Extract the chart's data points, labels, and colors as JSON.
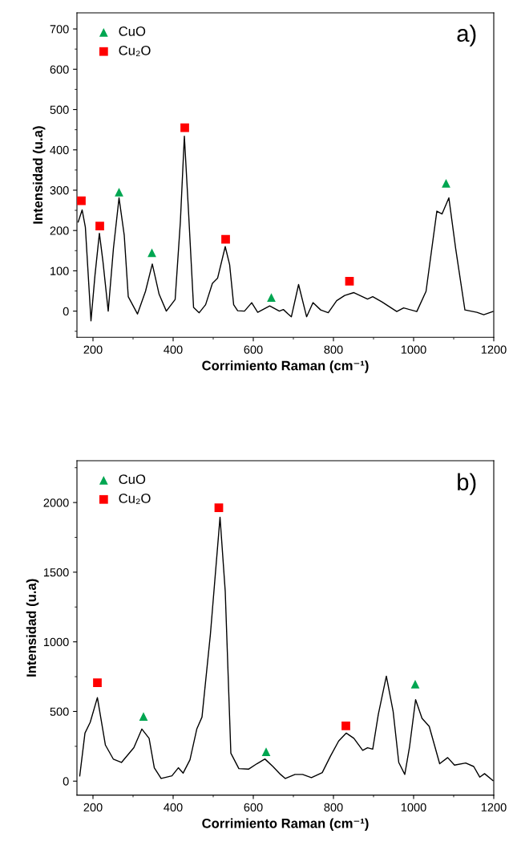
{
  "chart_data": [
    {
      "type": "line",
      "xlabel": "Corrimiento Raman (cm⁻¹)",
      "ylabel": "Intensidad (u.a)",
      "annotations": [
        "a)"
      ],
      "xlim": [
        160,
        1200
      ],
      "ylim": [
        -65,
        740
      ],
      "xticks": [
        200,
        400,
        600,
        800,
        1000,
        1200
      ],
      "yticks": [
        0,
        100,
        200,
        300,
        400,
        500,
        600,
        700
      ],
      "grid": false,
      "legend": "top left",
      "series": [
        {
          "color": "#000000",
          "marker": "none",
          "line_style": "solid",
          "x": [
            163,
            173,
            181,
            195,
            205,
            216,
            225,
            238,
            251,
            265,
            278,
            288,
            311,
            331,
            348,
            365,
            383,
            405,
            418,
            428,
            438,
            451,
            465,
            481,
            498,
            511,
            530,
            541,
            551,
            561,
            578,
            596,
            611,
            641,
            665,
            675,
            687,
            695,
            713,
            733,
            749,
            768,
            787,
            808,
            828,
            851,
            885,
            898,
            921,
            958,
            975,
            1008,
            1031,
            1058,
            1071,
            1088,
            1105,
            1128,
            1158,
            1175,
            1198
          ],
          "values": [
            221,
            251,
            208,
            -24,
            89,
            193,
            122,
            0,
            155,
            281,
            188,
            36,
            -7,
            49,
            117,
            42,
            0,
            29,
            221,
            434,
            254,
            9,
            -4,
            16,
            69,
            82,
            160,
            115,
            16,
            1,
            0,
            21,
            -3,
            13,
            0,
            4,
            -7,
            -14,
            66,
            -14,
            21,
            3,
            -4,
            26,
            39,
            46,
            30,
            36,
            23,
            -1,
            8,
            -1,
            49,
            248,
            241,
            281,
            155,
            3,
            -3,
            -9,
            -1
          ]
        },
        {
          "type": "scatter",
          "name": "CuO",
          "color": "#00a651",
          "marker": "triangle",
          "x": [
            265,
            347,
            645,
            1081
          ],
          "values": [
            295,
            145,
            34,
            317
          ]
        },
        {
          "type": "scatter",
          "name": "Cu₂O",
          "color": "#ff0000",
          "marker": "square",
          "x": [
            171,
            217,
            429,
            531,
            840
          ],
          "values": [
            274,
            211,
            455,
            178,
            74
          ]
        }
      ]
    },
    {
      "type": "line",
      "xlabel": "Corrimiento Raman (cm⁻¹)",
      "ylabel": "Intensidad (u.a)",
      "annotations": [
        "b)"
      ],
      "xlim": [
        160,
        1200
      ],
      "ylim": [
        -100,
        2300
      ],
      "xticks": [
        200,
        400,
        600,
        800,
        1000,
        1200
      ],
      "yticks": [
        0,
        500,
        1000,
        1500,
        2000
      ],
      "grid": false,
      "legend": "top left",
      "series": [
        {
          "color": "#000000",
          "marker": "none",
          "line_style": "solid",
          "x": [
            167,
            180,
            193,
            211,
            231,
            251,
            271,
            302,
            322,
            340,
            353,
            370,
            397,
            413,
            425,
            442,
            459,
            472,
            493,
            517,
            530,
            544,
            564,
            588,
            609,
            629,
            649,
            668,
            680,
            704,
            723,
            745,
            772,
            793,
            813,
            832,
            851,
            873,
            885,
            898,
            912,
            932,
            949,
            963,
            978,
            990,
            1005,
            1021,
            1039,
            1065,
            1085,
            1102,
            1130,
            1150,
            1165,
            1177,
            1198
          ],
          "values": [
            38,
            345,
            422,
            600,
            259,
            157,
            134,
            240,
            374,
            307,
            96,
            19,
            38,
            96,
            58,
            153,
            374,
            460,
            1055,
            1895,
            1362,
            201,
            90,
            86,
            125,
            159,
            105,
            48,
            19,
            48,
            48,
            25,
            61,
            182,
            288,
            345,
            307,
            221,
            240,
            230,
            480,
            754,
            499,
            134,
            48,
            249,
            585,
            451,
            393,
            125,
            169,
            115,
            130,
            105,
            29,
            54,
            4
          ]
        },
        {
          "type": "scatter",
          "name": "CuO",
          "color": "#00a651",
          "marker": "triangle",
          "x": [
            326,
            632,
            1004
          ],
          "values": [
            464,
            211,
            696
          ]
        },
        {
          "type": "scatter",
          "name": "Cu₂O",
          "color": "#ff0000",
          "marker": "square",
          "x": [
            211,
            514,
            831
          ],
          "values": [
            706,
            1962,
            397
          ]
        }
      ]
    }
  ]
}
